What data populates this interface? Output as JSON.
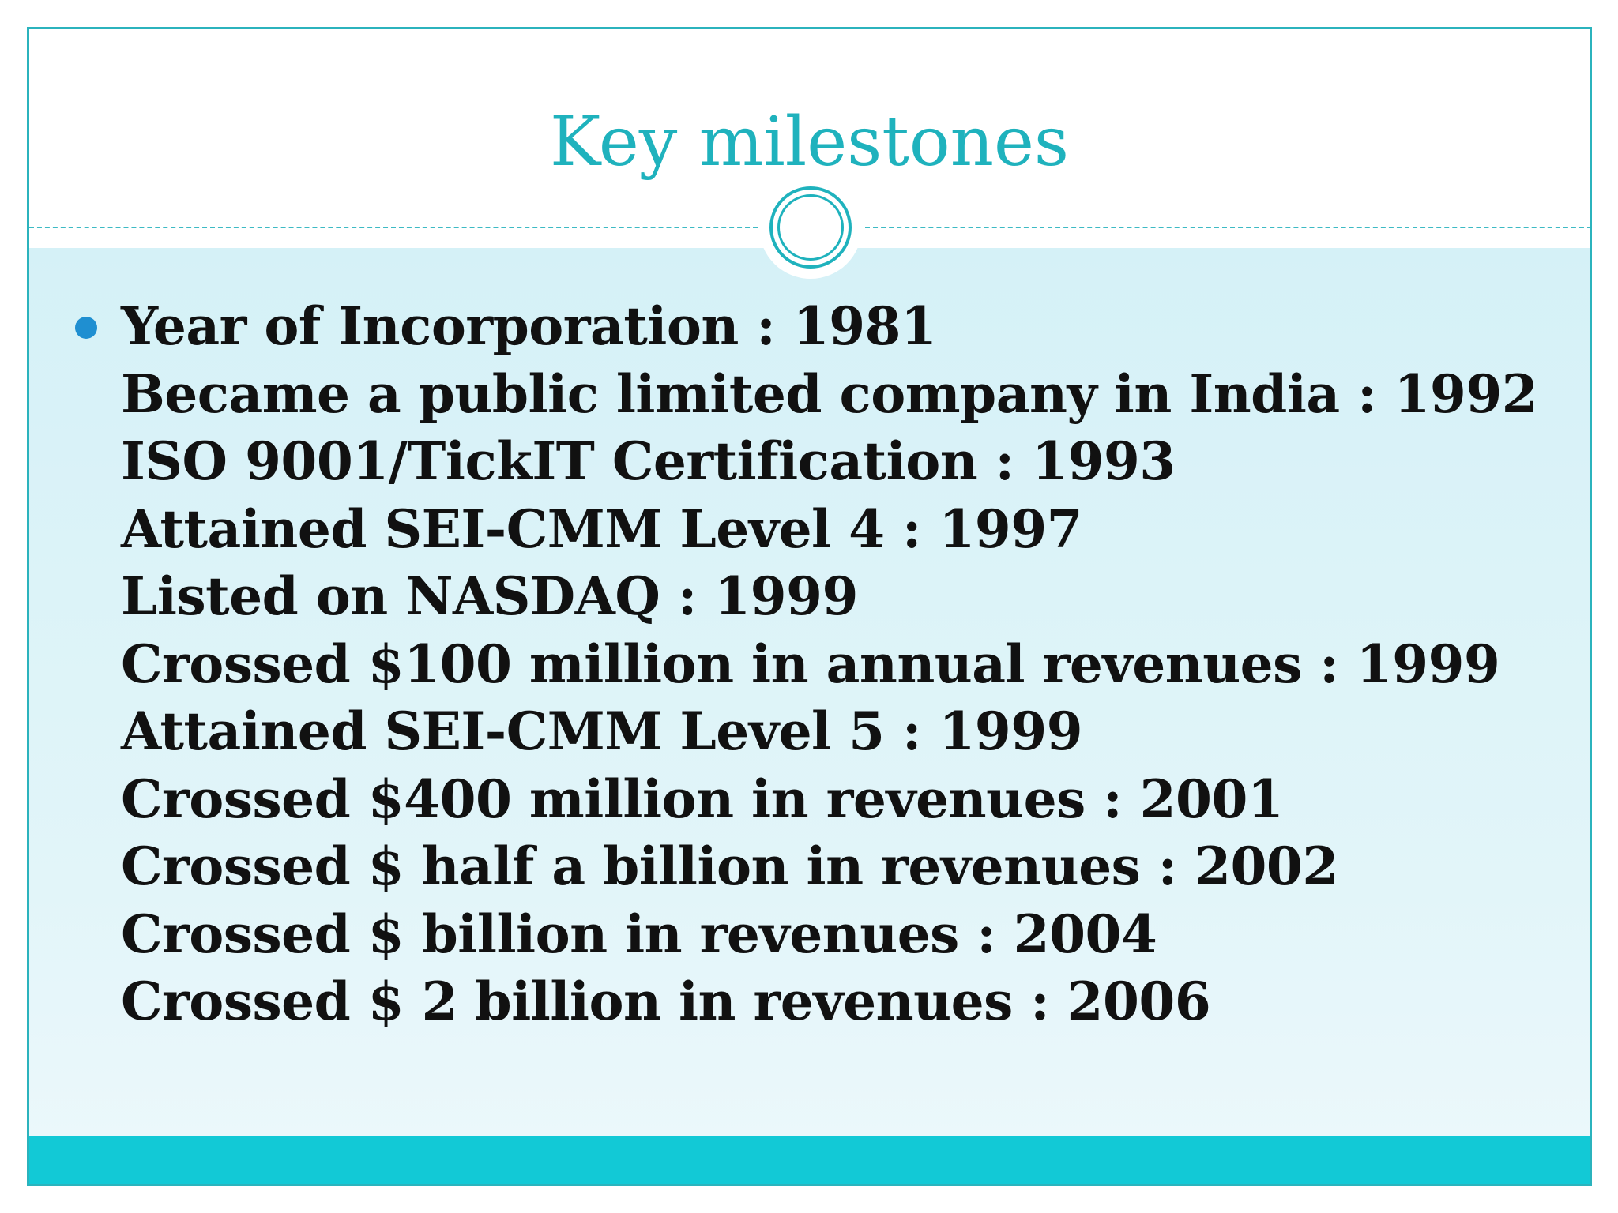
{
  "slide": {
    "title": "Key milestones",
    "milestones": [
      "Year of Incorporation : 1981",
      "Became a public limited company in India : 1992",
      "ISO 9001/TickIT Certification : 1993",
      "Attained SEI-CMM Level 4 : 1997",
      "Listed on NASDAQ : 1999",
      "Crossed $100 million in annual revenues : 1999",
      "Attained SEI-CMM Level 5 : 1999",
      "Crossed $400 million in revenues : 2001",
      "Crossed $ half a billion in revenues : 2002",
      "Crossed $ billion in revenues : 2004",
      "Crossed $ 2 billion in revenues : 2006"
    ]
  },
  "colors": {
    "accent": "#1fb2bd",
    "bullet": "#1f8fd1",
    "band": "#12c9d6",
    "content_bg": "#d5f1f7",
    "text": "#111111"
  },
  "icons": {
    "ornament": "circle-ornament-icon",
    "bullet": "bullet-dot-icon"
  }
}
